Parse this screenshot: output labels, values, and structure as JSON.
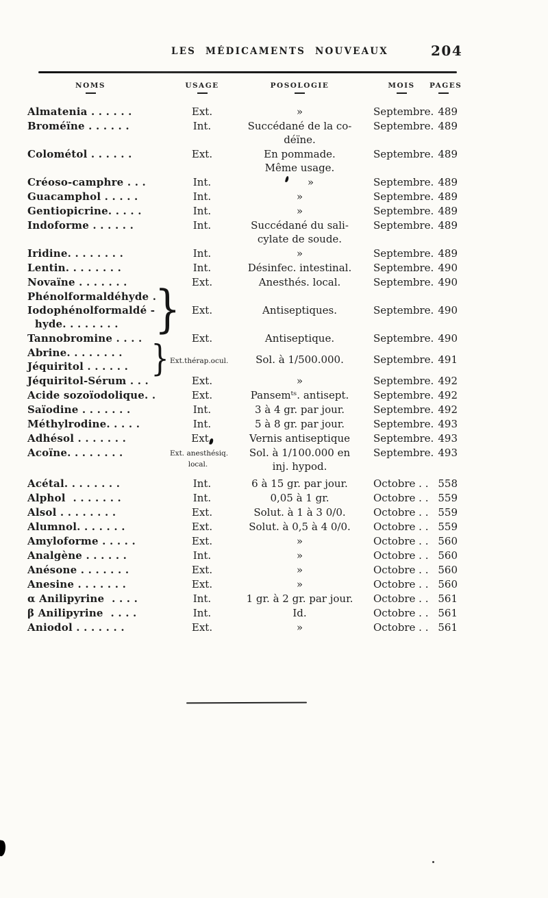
{
  "colors": {
    "paper": "#fcfbf7",
    "ink": "#1d1d1d"
  },
  "page": {
    "running_head": "LES MÉDICAMENTS NOUVEAUX",
    "page_number": "204"
  },
  "table": {
    "headers": [
      {
        "label": "NOMS"
      },
      {
        "label": "USAGE"
      },
      {
        "label": "POSOLOGIE"
      },
      {
        "label": "MOIS"
      },
      {
        "label": "PAGES"
      }
    ],
    "rows": [
      {
        "name": "Almatenia . . . . . .",
        "usage": "Ext.",
        "poso": "»",
        "mois": "Septembre.",
        "page": "489"
      },
      {
        "name": "Broméïne . . . . . .",
        "usage": "Int.",
        "poso": [
          "Succédané de la co-",
          "déïne."
        ],
        "mois": "Septembre.",
        "page": "489"
      },
      {
        "name": "Colométol . . . . . .",
        "usage": "Ext.",
        "poso": [
          "En pommade.",
          "Même usage."
        ],
        "mois": "Septembre.",
        "page": "489"
      },
      {
        "name": "Créoso-camphre . . .",
        "usage": "Int.",
        "poso": "»",
        "poso_mark": true,
        "mois": "Septembre.",
        "page": "489"
      },
      {
        "name": "Guacamphol . . . . .",
        "usage": "Int.",
        "poso": "»",
        "mois": "Septembre.",
        "page": "489"
      },
      {
        "name": "Gentiopicrine. . . . .",
        "usage": "Int.",
        "poso": "»",
        "mois": "Septembre.",
        "page": "489"
      },
      {
        "name": "Indoforme . . . . . .",
        "usage": "Int.",
        "poso": [
          "Succédané du sali-",
          "cylate de soude."
        ],
        "mois": "Septembre.",
        "page": "489"
      },
      {
        "name": "Iridine. . . . . . . .",
        "usage": "Int.",
        "poso": "»",
        "mois": "Septembre.",
        "page": "489"
      },
      {
        "name": "Lentin. . . . . . . .",
        "usage": "Int.",
        "poso": "Désinfec. intestinal.",
        "mois": "Septembre.",
        "page": "490"
      },
      {
        "name": "Novaïne . . . . . . .",
        "usage": "Ext.",
        "poso": "Anesthés. local.",
        "mois": "Septembre.",
        "page": "490"
      },
      {
        "name_lines": [
          "Phénolformaldéhyde .",
          "Iodophénolformaldé -",
          "  hyde. . . . . . . ."
        ],
        "usage": "Ext.",
        "poso": "Antiseptiques.",
        "mois": "Septembre.",
        "page": "490"
      },
      {
        "name": "Tannobromine . . . .",
        "usage": "Ext.",
        "poso": "Antiseptique.",
        "mois": "Septembre.",
        "page": "490"
      },
      {
        "name_lines": [
          "Abrine. . . . . . . .",
          "Jéquiritol . . . . . ."
        ],
        "usage": "Ext.thérap.ocul.",
        "usage_small": true,
        "poso": "Sol. à 1/500.000.",
        "mois": "Septembre.",
        "page": "491"
      },
      {
        "name": "Jéquiritol-Sérum . . .",
        "usage": "Ext.",
        "poso": "»",
        "mois": "Septembre.",
        "page": "492"
      },
      {
        "name": "Acide sozoïodolique. .",
        "usage": "Ext.",
        "poso": "Pansemᵗˢ. antisept.",
        "mois": "Septembre.",
        "page": "492"
      },
      {
        "name": "Saïodine . . . . . . .",
        "usage": "Int.",
        "poso": "3 à 4 gr. par jour.",
        "mois": "Septembre.",
        "page": "492"
      },
      {
        "name": "Méthylrodine. . . . .",
        "usage": "Int.",
        "poso": "5 à 8 gr. par jour.",
        "mois": "Septembre.",
        "page": "493"
      },
      {
        "name": "Adhésol . . . . . . .",
        "usage": "Ext",
        "usage_mark": true,
        "poso": "Vernis antiseptique",
        "mois": "Septembre.",
        "page": "493"
      },
      {
        "name": "Acoïne. . . . . . . .",
        "usage_lines": [
          "Ext. anesthésiq.",
          "local."
        ],
        "usage_small": true,
        "poso": [
          "Sol. à 1/100.000 en",
          "inj. hypod."
        ],
        "mois": "Septembre.",
        "page": "493"
      },
      {
        "name": "Acétal. . . . . . . .",
        "usage": "Int.",
        "poso": "6 à 15 gr. par jour.",
        "mois": "Octobre . .",
        "page": "558",
        "gap": 5
      },
      {
        "name": "Alphol  . . . . . . .",
        "usage": "Int.",
        "poso": "0,05 à 1 gr.",
        "mois": "Octobre . .",
        "page": "559"
      },
      {
        "name": "Alsol . . . . . . . .",
        "usage": "Ext.",
        "poso": "Solut. à 1 à 3 0/0.",
        "mois": "Octobre . .",
        "page": "559"
      },
      {
        "name": "Alumnol. . . . . . .",
        "usage": "Ext.",
        "poso": "Solut. à 0,5 à 4 0/0.",
        "mois": "Octobre . .",
        "page": "559"
      },
      {
        "name": "Amyloforme . . . . .",
        "usage": "Ext.",
        "poso": "»",
        "mois": "Octobre . .",
        "page": "560"
      },
      {
        "name": "Analgène . . . . . .",
        "usage": "Int.",
        "poso": "»",
        "mois": "Octobre . .",
        "page": "560"
      },
      {
        "name": "Anésone . . . . . . .",
        "usage": "Ext.",
        "poso": "»",
        "mois": "Octobre . .",
        "page": "560"
      },
      {
        "name": "Anesine . . . . . . .",
        "usage": "Ext.",
        "poso": "»",
        "mois": "Octobre . .",
        "page": "560"
      },
      {
        "name": "α Anilipyrine  . . . .",
        "usage": "Int.",
        "poso": "1 gr. à 2 gr. par jour.",
        "mois": "Octobre . .",
        "page": "561"
      },
      {
        "name": "β Anilipyrine  . . . .",
        "usage": "Int.",
        "poso": "Id.",
        "mois": "Octobre . .",
        "page": "561"
      },
      {
        "name": "Aniodol . . . . . . .",
        "usage": "Ext.",
        "poso": "»",
        "mois": "Octobre . .",
        "page": "561"
      }
    ]
  }
}
